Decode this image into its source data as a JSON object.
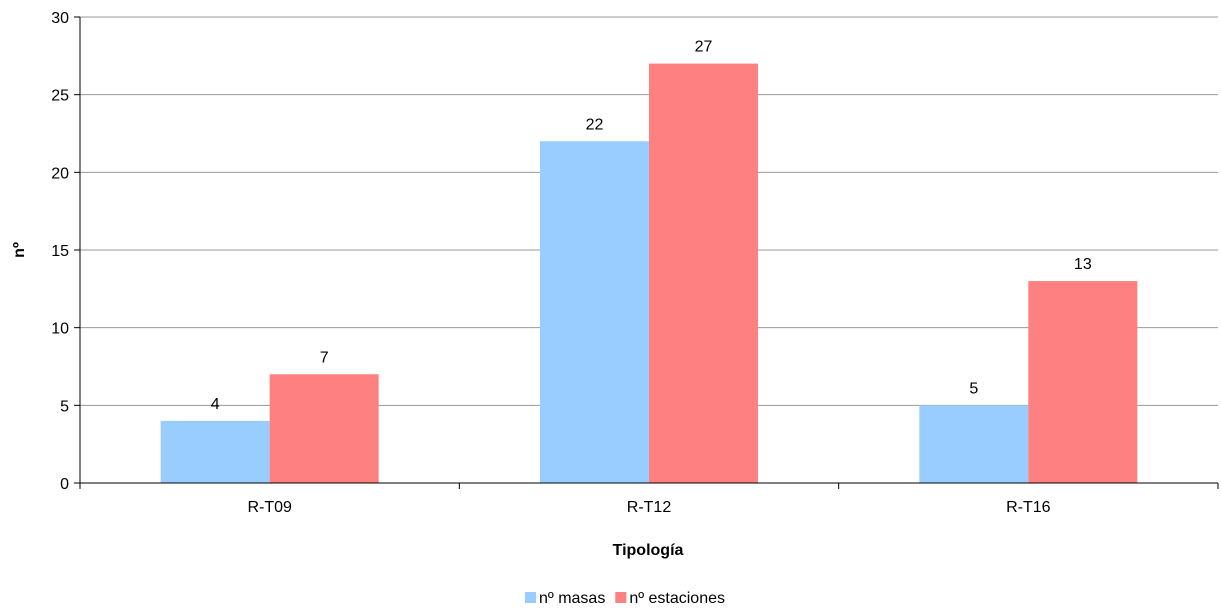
{
  "chart_data": {
    "type": "bar",
    "title": "",
    "xlabel": "Tipología",
    "ylabel": "nº",
    "categories": [
      "R-T09",
      "R-T12",
      "R-T16"
    ],
    "series": [
      {
        "name": "nº masas",
        "values": [
          4,
          22,
          5
        ],
        "color": "#99ccff"
      },
      {
        "name": "nº estaciones",
        "values": [
          7,
          27,
          13
        ],
        "color": "#ff8080"
      }
    ],
    "ylim": [
      0,
      30
    ],
    "yticks": [
      0,
      5,
      10,
      15,
      20,
      25,
      30
    ],
    "grid": true,
    "legend_position": "bottom"
  }
}
